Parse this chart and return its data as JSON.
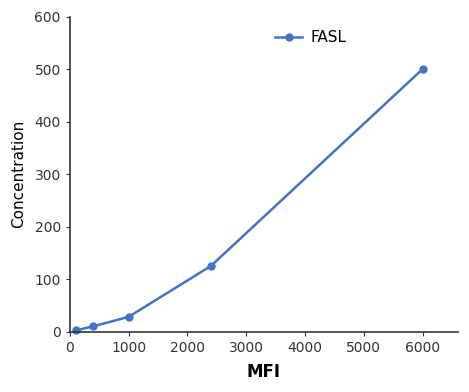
{
  "x": [
    100,
    400,
    1000,
    2400,
    6000
  ],
  "y": [
    2,
    10,
    28,
    125,
    500
  ],
  "line_color": "#4472C4",
  "marker": "o",
  "marker_size": 5,
  "line_width": 1.8,
  "xlabel": "MFI",
  "ylabel": "Concentration",
  "legend_label": "FASL",
  "xlim": [
    0,
    6600
  ],
  "ylim": [
    0,
    600
  ],
  "xticks": [
    0,
    1000,
    2000,
    3000,
    4000,
    5000,
    6000
  ],
  "yticks": [
    0,
    100,
    200,
    300,
    400,
    500,
    600
  ],
  "xlabel_fontsize": 12,
  "ylabel_fontsize": 11,
  "tick_fontsize": 10,
  "legend_fontsize": 11,
  "background_color": "#ffffff",
  "spine_color": "#333333"
}
